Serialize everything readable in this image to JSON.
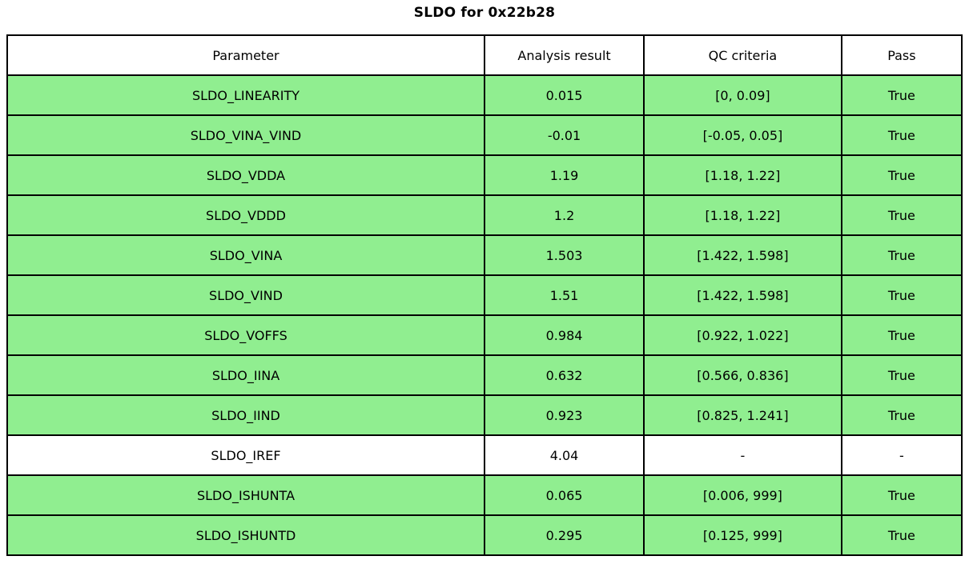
{
  "chart_data": {
    "type": "table",
    "title": "SLDO for 0x22b28",
    "columns": [
      "Parameter",
      "Analysis result",
      "QC criteria",
      "Pass"
    ],
    "rows": [
      {
        "parameter": "SLDO_LINEARITY",
        "result": "0.015",
        "criteria": "[0, 0.09]",
        "pass": "True"
      },
      {
        "parameter": "SLDO_VINA_VIND",
        "result": "-0.01",
        "criteria": "[-0.05, 0.05]",
        "pass": "True"
      },
      {
        "parameter": "SLDO_VDDA",
        "result": "1.19",
        "criteria": "[1.18, 1.22]",
        "pass": "True"
      },
      {
        "parameter": "SLDO_VDDD",
        "result": "1.2",
        "criteria": "[1.18, 1.22]",
        "pass": "True"
      },
      {
        "parameter": "SLDO_VINA",
        "result": "1.503",
        "criteria": "[1.422, 1.598]",
        "pass": "True"
      },
      {
        "parameter": "SLDO_VIND",
        "result": "1.51",
        "criteria": "[1.422, 1.598]",
        "pass": "True"
      },
      {
        "parameter": "SLDO_VOFFS",
        "result": "0.984",
        "criteria": "[0.922, 1.022]",
        "pass": "True"
      },
      {
        "parameter": "SLDO_IINA",
        "result": "0.632",
        "criteria": "[0.566, 0.836]",
        "pass": "True"
      },
      {
        "parameter": "SLDO_IIND",
        "result": "0.923",
        "criteria": "[0.825, 1.241]",
        "pass": "True"
      },
      {
        "parameter": "SLDO_IREF",
        "result": "4.04",
        "criteria": "-",
        "pass": "-"
      },
      {
        "parameter": "SLDO_ISHUNTA",
        "result": "0.065",
        "criteria": "[0.006, 999]",
        "pass": "True"
      },
      {
        "parameter": "SLDO_ISHUNTD",
        "result": "0.295",
        "criteria": "[0.125, 999]",
        "pass": "True"
      }
    ],
    "layout": {
      "legend": "none",
      "grid": "cell-borders"
    }
  },
  "colors": {
    "pass_row_bg": "#90ee90",
    "neutral_row_bg": "#ffffff",
    "header_bg": "#ffffff",
    "border": "#000000",
    "text": "#000000"
  }
}
